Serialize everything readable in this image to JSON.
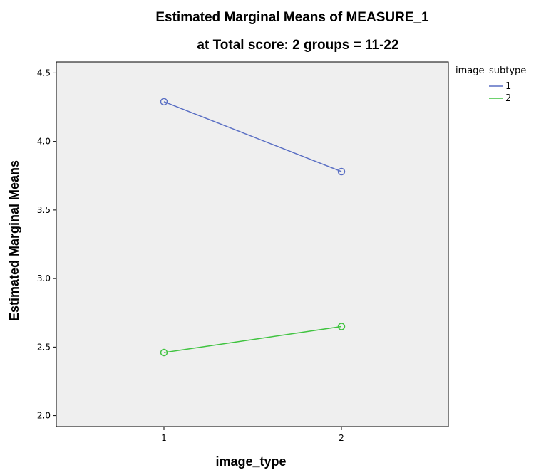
{
  "chart_data": {
    "type": "line",
    "title": "Estimated Marginal Means of MEASURE_1",
    "subtitle": "at Total score: 2 groups = 11-22",
    "xlabel": "image_type",
    "ylabel": "Estimated Marginal Means",
    "categories": [
      "1",
      "2"
    ],
    "ylim": [
      1.92,
      4.58
    ],
    "yticks": [
      "2.0",
      "2.5",
      "3.0",
      "3.5",
      "4.0",
      "4.5"
    ],
    "grid": false,
    "legend": {
      "title": "image_subtype",
      "position": "top-right"
    },
    "series": [
      {
        "name": "1",
        "color": "#5a6fc4",
        "values": [
          4.29,
          3.78
        ]
      },
      {
        "name": "2",
        "color": "#3fc33f",
        "values": [
          2.46,
          2.65
        ]
      }
    ],
    "plot_background": "#efefef",
    "marker": "open-circle"
  }
}
